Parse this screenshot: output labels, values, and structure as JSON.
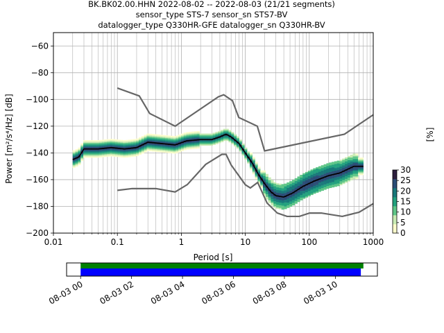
{
  "title_lines": [
    "BK.BK02.00.HHN   2022-08-02 -- 2022-08-03  (21/21 segments)",
    "sensor_type STS-7 sensor_sn STS7-BV",
    "datalogger_type Q330HR-GFE datalogger_sn Q330HR-BV"
  ],
  "chart_data": [
    {
      "type": "heatmap",
      "name": "ppsd",
      "xlabel": "Period [s]",
      "ylabel": "Power [m²/s⁴/Hz] [dB]",
      "xscale": "log",
      "xlim": [
        0.01,
        1000
      ],
      "ylim": [
        -200,
        -50
      ],
      "x_ticks": [
        0.01,
        0.1,
        1,
        10,
        100,
        1000
      ],
      "x_tick_labels": [
        "0.01",
        "0.1",
        "1",
        "10",
        "100",
        "1000"
      ],
      "y_ticks": [
        -200,
        -180,
        -160,
        -140,
        -120,
        -100,
        -80,
        -60
      ],
      "y_tick_labels": [
        "−200",
        "−180",
        "−160",
        "−140",
        "−120",
        "−100",
        "−80",
        "−60"
      ],
      "grid": true,
      "colorbar": {
        "label": "[%]",
        "range": [
          0,
          30
        ],
        "ticks": [
          0,
          5,
          10,
          15,
          20,
          25,
          30
        ],
        "colors": [
          "#fdfdcc",
          "#c9ebb4",
          "#5fc688",
          "#23a17e",
          "#19787a",
          "#2b4d77",
          "#2d1e3e"
        ]
      },
      "noise_model_high": {
        "period": [
          0.1,
          0.22,
          0.32,
          0.8,
          3.8,
          4.6,
          6.3,
          7.9,
          15.4,
          20,
          354.8,
          1000
        ],
        "power": [
          -91.5,
          -97.4,
          -110.5,
          -120,
          -98,
          -96.5,
          -101,
          -113.5,
          -120,
          -138.5,
          -126,
          -111.5
        ]
      },
      "noise_model_low": {
        "period": [
          0.1,
          0.17,
          0.4,
          0.8,
          1.24,
          2.4,
          4.3,
          5,
          6,
          10,
          12,
          15.6,
          21.9,
          31.6,
          45,
          70,
          101,
          154,
          328,
          600,
          1000
        ],
        "power": [
          -168,
          -166.7,
          -166.7,
          -169.2,
          -163.7,
          -148.6,
          -141.1,
          -141.1,
          -149,
          -163.8,
          -166.2,
          -162.1,
          -177.5,
          -185,
          -187.5,
          -187.5,
          -185,
          -185,
          -187.5,
          -184.4,
          -178
        ]
      },
      "median": {
        "period": [
          0.02,
          0.025,
          0.03,
          0.05,
          0.08,
          0.13,
          0.2,
          0.3,
          0.5,
          0.8,
          1.2,
          2,
          3,
          4,
          5,
          6,
          8,
          10,
          13,
          16,
          20,
          25,
          30,
          40,
          55,
          80,
          120,
          200,
          300,
          500,
          700
        ],
        "power": [
          -145,
          -143,
          -137,
          -137,
          -136,
          -137,
          -136,
          -132,
          -133,
          -134,
          -131,
          -130,
          -130,
          -128,
          -126,
          -128,
          -133,
          -140,
          -148,
          -156,
          -163,
          -169,
          -172,
          -173,
          -170,
          -165,
          -161,
          -157,
          -155,
          -150,
          -150
        ]
      }
    },
    {
      "type": "bar",
      "name": "data-coverage",
      "x_tick_labels": [
        "08-03 00",
        "08-03 02",
        "08-03 04",
        "08-03 06",
        "08-03 08",
        "08-03 10"
      ],
      "xlim_hours": [
        -0.55,
        11.65
      ],
      "coverage_hours": [
        0,
        11.0
      ],
      "available_hours": [
        0,
        11.1
      ],
      "coverage_color": "#0000ff",
      "available_color": "#008000"
    }
  ]
}
